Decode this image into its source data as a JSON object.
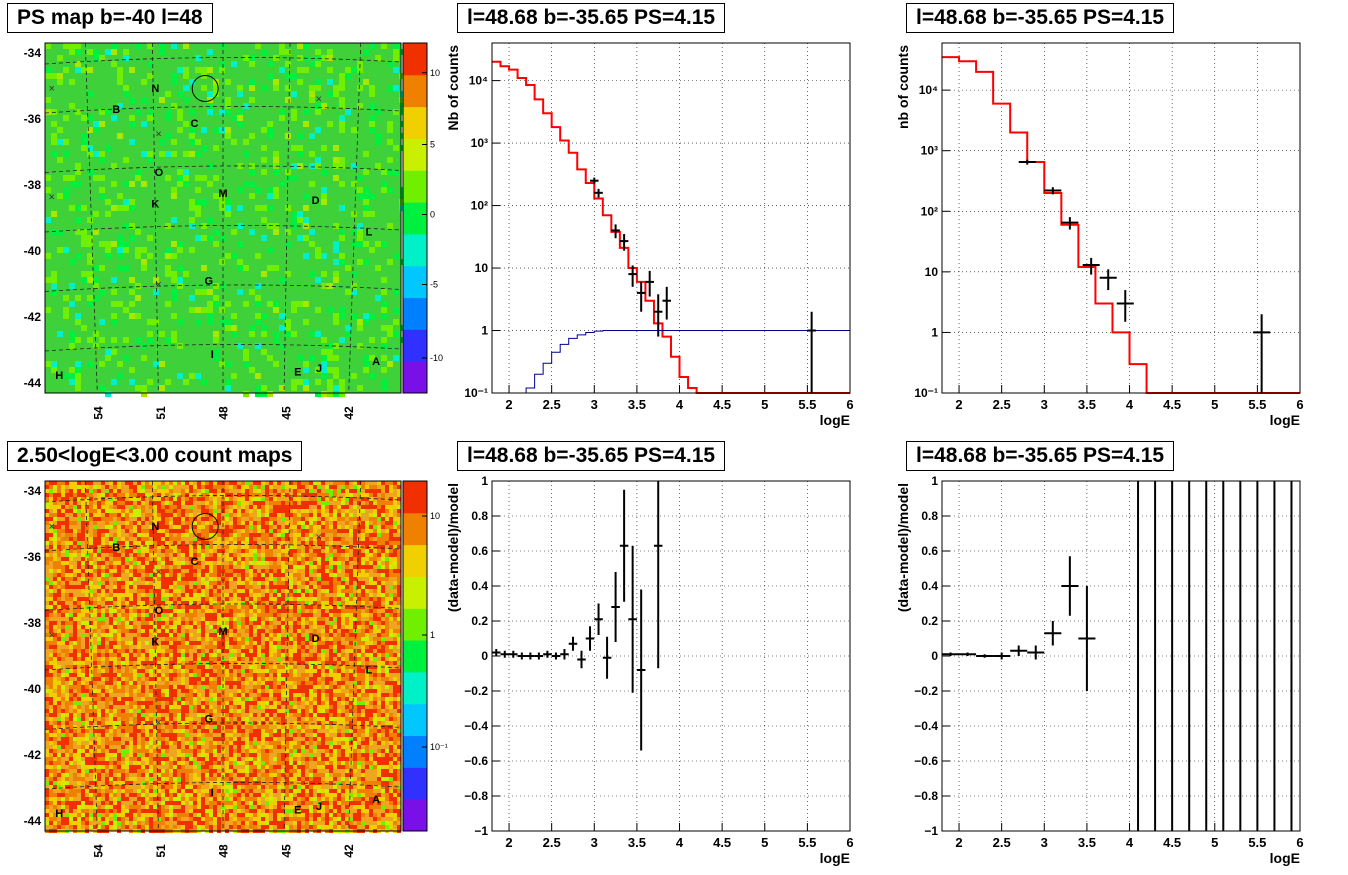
{
  "titles": {
    "map_top": "PS map b=-40 l=48",
    "map_bottom": "2.50<logE<3.00 count maps",
    "spec_1": "l=48.68 b=-35.65 PS=4.15",
    "spec_2": "l=48.68 b=-35.65 PS=4.15",
    "res_1": "l=48.68 b=-35.65 PS=4.15",
    "res_2": "l=48.68 b=-35.65 PS=4.15"
  },
  "maps": {
    "b_ticks": [
      "-34",
      "-36",
      "-38",
      "-40",
      "-42",
      "-44"
    ],
    "l_ticks": [
      "54",
      "51",
      "48",
      "45",
      "42"
    ],
    "top_colorbar_labels": [
      "10",
      "5",
      "0",
      "-5",
      "-10"
    ],
    "bottom_colorbar_labels": [
      "10",
      "1",
      "10⁻¹"
    ],
    "markers": [
      "B",
      "N",
      "C",
      "O",
      "K",
      "M",
      "D",
      "L",
      "G",
      "I",
      "H",
      "E",
      "J",
      "A"
    ],
    "colors": {
      "top_bg": "#3ed13a",
      "bottom_bg": "#f0a520",
      "palette": [
        "#7a10e8",
        "#3030ff",
        "#0080ff",
        "#00c8ff",
        "#00f0c8",
        "#00f040",
        "#70f000",
        "#c8f000",
        "#f0d000",
        "#f08000",
        "#f03000"
      ]
    }
  },
  "chart_data": [
    {
      "type": "line",
      "panel": "spectrum-left",
      "title": "l=48.68 b=-35.65 PS=4.15",
      "xlabel": "logE",
      "ylabel": "Nb of counts",
      "xlim": [
        1.8,
        6.0
      ],
      "ylim": [
        0.1,
        40000
      ],
      "log_y": true,
      "x_ticks": [
        "2",
        "2.5",
        "3",
        "3.5",
        "4",
        "4.5",
        "5",
        "5.5",
        "6"
      ],
      "y_ticks": [
        "10⁻¹",
        "1",
        "10",
        "10²",
        "10³",
        "10⁴"
      ],
      "grid": true,
      "series": [
        {
          "color": "#ff0000",
          "style": "step",
          "bin_width": 0.1,
          "x": [
            1.8,
            1.9,
            2.0,
            2.1,
            2.2,
            2.3,
            2.4,
            2.5,
            2.6,
            2.7,
            2.8,
            2.9,
            3.0,
            3.1,
            3.2,
            3.3,
            3.4,
            3.5,
            3.6,
            3.7,
            3.8,
            3.9,
            4.0,
            4.1,
            4.2,
            6.0
          ],
          "values": [
            20000,
            17000,
            15000,
            11000,
            8500,
            5000,
            3000,
            1800,
            1100,
            700,
            380,
            230,
            130,
            70,
            38,
            21,
            10,
            6,
            3,
            1.3,
            0.8,
            0.38,
            0.18,
            0.12,
            0.1,
            0.1
          ]
        },
        {
          "color": "#00008b",
          "style": "step",
          "bin_width": 0.1,
          "x": [
            2.1,
            2.2,
            2.3,
            2.4,
            2.5,
            2.6,
            2.7,
            2.8,
            2.9,
            3.0,
            3.1,
            6.0
          ],
          "values": [
            0.1,
            0.12,
            0.2,
            0.3,
            0.45,
            0.6,
            0.75,
            0.85,
            0.93,
            0.98,
            1.0,
            1.0
          ]
        }
      ],
      "points": {
        "x": [
          3.0,
          3.05,
          3.25,
          3.35,
          3.45,
          3.55,
          3.65,
          3.75,
          3.85,
          5.55
        ],
        "y": [
          250,
          160,
          40,
          27,
          8,
          4,
          6,
          2,
          3,
          1
        ],
        "yerr_lo": [
          30,
          25,
          10,
          8,
          3,
          2,
          2.5,
          1.2,
          1.5,
          0.9
        ],
        "yerr_hi": [
          30,
          25,
          10,
          8,
          3,
          2,
          3,
          1.8,
          2,
          1.0
        ]
      }
    },
    {
      "type": "line",
      "panel": "spectrum-right",
      "title": "l=48.68 b=-35.65 PS=4.15",
      "xlabel": "logE",
      "ylabel": "nb of counts",
      "xlim": [
        1.8,
        6.0
      ],
      "ylim": [
        0.1,
        60000
      ],
      "log_y": true,
      "x_ticks": [
        "2",
        "2.5",
        "3",
        "3.5",
        "4",
        "4.5",
        "5",
        "5.5",
        "6"
      ],
      "y_ticks": [
        "10⁻¹",
        "1",
        "10",
        "10²",
        "10³",
        "10⁴"
      ],
      "grid": true,
      "series": [
        {
          "color": "#ff0000",
          "style": "step",
          "bin_width": 0.2,
          "x": [
            1.8,
            2.0,
            2.2,
            2.4,
            2.6,
            2.8,
            3.0,
            3.2,
            3.4,
            3.6,
            3.8,
            4.0,
            4.2,
            6.0
          ],
          "values": [
            35000,
            30000,
            20000,
            6000,
            2000,
            650,
            200,
            60,
            12,
            3,
            1,
            0.3,
            0.1,
            0.1
          ]
        }
      ],
      "points": {
        "x": [
          2.8,
          3.1,
          3.3,
          3.55,
          3.75,
          3.95,
          5.55
        ],
        "y": [
          650,
          220,
          65,
          13,
          8,
          3,
          1
        ],
        "yerr_lo": [
          60,
          30,
          15,
          4,
          3,
          1.5,
          0.9
        ],
        "yerr_hi": [
          60,
          30,
          15,
          4,
          3,
          2,
          1.0
        ]
      }
    },
    {
      "type": "scatter",
      "panel": "residual-left",
      "title": "l=48.68 b=-35.65 PS=4.15",
      "xlabel": "logE",
      "ylabel": "(data-model)/model",
      "xlim": [
        1.8,
        6.0
      ],
      "ylim": [
        -1,
        1
      ],
      "x_ticks": [
        "2",
        "2.5",
        "3",
        "3.5",
        "4",
        "4.5",
        "5",
        "5.5",
        "6"
      ],
      "y_ticks": [
        "−1",
        "−0.8",
        "−0.6",
        "−0.4",
        "−0.2",
        "0",
        "0.2",
        "0.4",
        "0.6",
        "0.8",
        "1"
      ],
      "grid": true,
      "points": {
        "x": [
          1.85,
          1.95,
          2.05,
          2.15,
          2.25,
          2.35,
          2.45,
          2.55,
          2.65,
          2.75,
          2.85,
          2.95,
          3.05,
          3.15,
          3.25,
          3.35,
          3.45,
          3.55,
          3.65,
          3.75
        ],
        "y": [
          0.02,
          0.01,
          0.01,
          0,
          0,
          0,
          0.01,
          0,
          0.01,
          0.07,
          -0.02,
          0.1,
          0.21,
          -0.01,
          0.28,
          0.63,
          0.21,
          -0.08,
          null,
          0.63
        ],
        "yerr": [
          0.02,
          0.02,
          0.02,
          0.02,
          0.02,
          0.02,
          0.02,
          0.02,
          0.03,
          0.04,
          0.05,
          0.07,
          0.09,
          0.12,
          0.2,
          0.32,
          0.42,
          0.46,
          null,
          0.7
        ]
      }
    },
    {
      "type": "scatter",
      "panel": "residual-right",
      "title": "l=48.68 b=-35.65 PS=4.15",
      "xlabel": "logE",
      "ylabel": "(data-model)/model",
      "xlim": [
        1.8,
        6.0
      ],
      "ylim": [
        -1,
        1
      ],
      "x_ticks": [
        "2",
        "2.5",
        "3",
        "3.5",
        "4",
        "4.5",
        "5",
        "5.5",
        "6"
      ],
      "y_ticks": [
        "−1",
        "−0.8",
        "−0.6",
        "−0.4",
        "−0.2",
        "0",
        "0.2",
        "0.4",
        "0.6",
        "0.8",
        "1"
      ],
      "grid": true,
      "points": {
        "x": [
          1.9,
          2.1,
          2.3,
          2.5,
          2.7,
          2.9,
          3.1,
          3.3,
          3.5
        ],
        "y": [
          0.01,
          0.01,
          0,
          0,
          0.03,
          0.02,
          0.13,
          0.4,
          0.1
        ],
        "yerr": [
          0.01,
          0.01,
          0.01,
          0.02,
          0.03,
          0.04,
          0.07,
          0.17,
          0.3
        ]
      },
      "vertical_lines_x": [
        4.1,
        4.3,
        4.5,
        4.7,
        4.9,
        5.1,
        5.3,
        5.5,
        5.7,
        5.9
      ]
    }
  ]
}
